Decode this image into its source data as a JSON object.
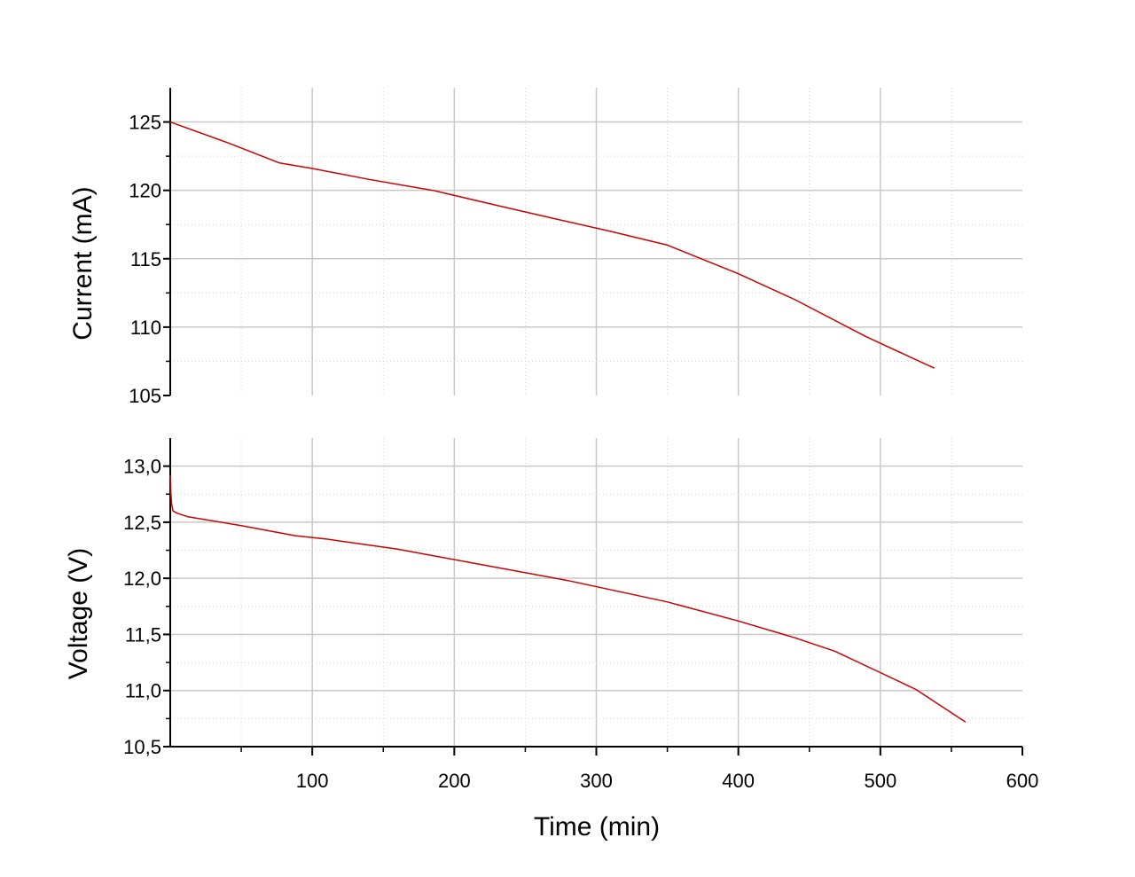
{
  "chart_data": [
    {
      "type": "line",
      "ylabel": "Current (mA)",
      "xlim": [
        0,
        600
      ],
      "ylim": [
        105,
        127.5
      ],
      "yticks": [
        "105",
        "110",
        "115",
        "120",
        "125"
      ],
      "ytick_values": [
        105,
        110,
        115,
        120,
        125
      ],
      "grid": true,
      "line_color": "#cc0000",
      "series": [
        {
          "x": [
            0,
            40,
            77,
            100,
            140,
            185,
            230,
            272,
            310,
            350,
            400,
            440,
            490,
            538
          ],
          "y": [
            125.0,
            123.5,
            122.0,
            121.6,
            120.8,
            120.0,
            118.9,
            117.9,
            117.0,
            116.0,
            113.9,
            112.0,
            109.3,
            107.0
          ]
        }
      ]
    },
    {
      "type": "line",
      "xlabel": "Time (min)",
      "ylabel": "Voltage (V)",
      "xlim": [
        0,
        600
      ],
      "ylim": [
        10.5,
        13.25
      ],
      "xticks": [
        "100",
        "200",
        "300",
        "400",
        "500",
        "600"
      ],
      "xtick_values": [
        100,
        200,
        300,
        400,
        500,
        600
      ],
      "yticks": [
        "10,5",
        "11,0",
        "11,5",
        "12,0",
        "12,5",
        "13,0"
      ],
      "ytick_values": [
        10.5,
        11.0,
        11.5,
        12.0,
        12.5,
        13.0
      ],
      "grid": true,
      "line_color": "#cc0000",
      "series": [
        {
          "x": [
            0,
            0.5,
            1,
            1.5,
            2,
            5,
            12,
            50,
            88,
            110,
            160,
            220,
            280,
            350,
            400,
            440,
            468,
            500,
            525,
            560
          ],
          "y": [
            12.92,
            12.75,
            12.66,
            12.63,
            12.6,
            12.58,
            12.55,
            12.47,
            12.38,
            12.35,
            12.26,
            12.12,
            11.98,
            11.79,
            11.62,
            11.47,
            11.35,
            11.16,
            11.01,
            10.72
          ]
        }
      ]
    }
  ]
}
